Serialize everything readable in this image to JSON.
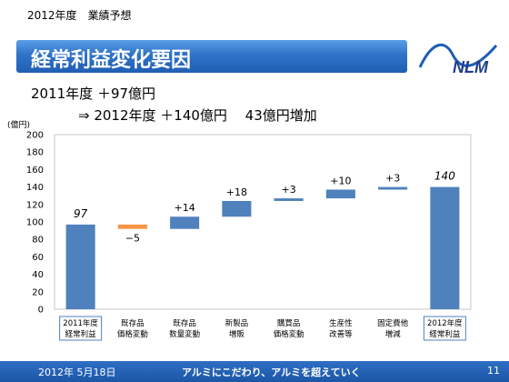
{
  "header": {
    "fiscal_title": "2012年度　業績予想"
  },
  "title": {
    "text": "経常利益変化要因"
  },
  "logo": {
    "text": "NLM"
  },
  "summary": {
    "line1": "2011年度 ＋97億円",
    "line2": "⇒ 2012年度 ＋140億円　 43億円増加"
  },
  "footer": {
    "date": "2012年 5月18日",
    "slogan": "アルミにこだわり、アルミを超えていく",
    "page": "11"
  },
  "colors": {
    "bar_blue": "#4f81bd",
    "bar_orange": "#f79646",
    "title_blue": "#2f72c8"
  },
  "chart_data": {
    "type": "waterfall",
    "unit_label": "(億円)",
    "ylim": [
      0,
      200
    ],
    "yticks": [
      "0",
      "20",
      "40",
      "60",
      "80",
      "100",
      "120",
      "140",
      "160",
      "180",
      "200"
    ],
    "grid": false,
    "categories": [
      {
        "line1": "2011年度",
        "line2": "経常利益",
        "boxed": true
      },
      {
        "line1": "既存品",
        "line2": "価格変動",
        "boxed": false
      },
      {
        "line1": "既存品",
        "line2": "数量変動",
        "boxed": false
      },
      {
        "line1": "新製品",
        "line2": "増販",
        "boxed": false
      },
      {
        "line1": "購買品",
        "line2": "価格変動",
        "boxed": false
      },
      {
        "line1": "生産性",
        "line2": "改善等",
        "boxed": false
      },
      {
        "line1": "固定費他",
        "line2": "増減",
        "boxed": false
      },
      {
        "line1": "2012年度",
        "line2": "経常利益",
        "boxed": true
      }
    ],
    "bars": [
      {
        "kind": "total",
        "start": 0,
        "end": 97,
        "label": "97"
      },
      {
        "kind": "delta",
        "start": 97,
        "end": 92,
        "label": "−5"
      },
      {
        "kind": "delta",
        "start": 92,
        "end": 106,
        "label": "+14"
      },
      {
        "kind": "delta",
        "start": 106,
        "end": 124,
        "label": "+18"
      },
      {
        "kind": "delta",
        "start": 124,
        "end": 127,
        "label": "+3"
      },
      {
        "kind": "delta",
        "start": 127,
        "end": 137,
        "label": "+10"
      },
      {
        "kind": "delta",
        "start": 137,
        "end": 140,
        "label": "+3"
      },
      {
        "kind": "total",
        "start": 0,
        "end": 140,
        "label": "140"
      }
    ]
  }
}
